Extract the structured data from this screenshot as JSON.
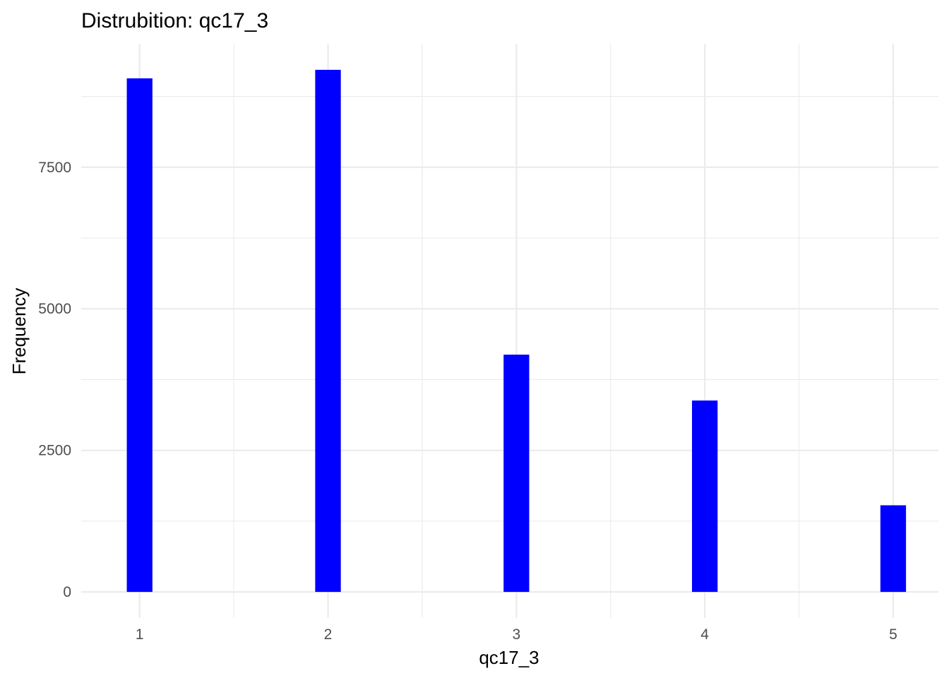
{
  "chart_data": {
    "type": "bar",
    "title": "Distrubition: qc17_3",
    "xlabel": "qc17_3",
    "ylabel": "Frequency",
    "x": [
      1,
      2,
      3,
      4,
      5
    ],
    "x_ticks": [
      "1",
      "2",
      "3",
      "4",
      "5"
    ],
    "values": [
      9070,
      9220,
      4190,
      3380,
      1530
    ],
    "y_ticks": [
      0,
      2500,
      5000,
      7500
    ],
    "y_tick_labels": [
      "0",
      "2500",
      "5000",
      "7500"
    ],
    "xlim": [
      0.69,
      5.24
    ],
    "ylim": [
      -460,
      9680
    ],
    "bar_color": "#0000ff",
    "grid": true,
    "legend": "none"
  }
}
